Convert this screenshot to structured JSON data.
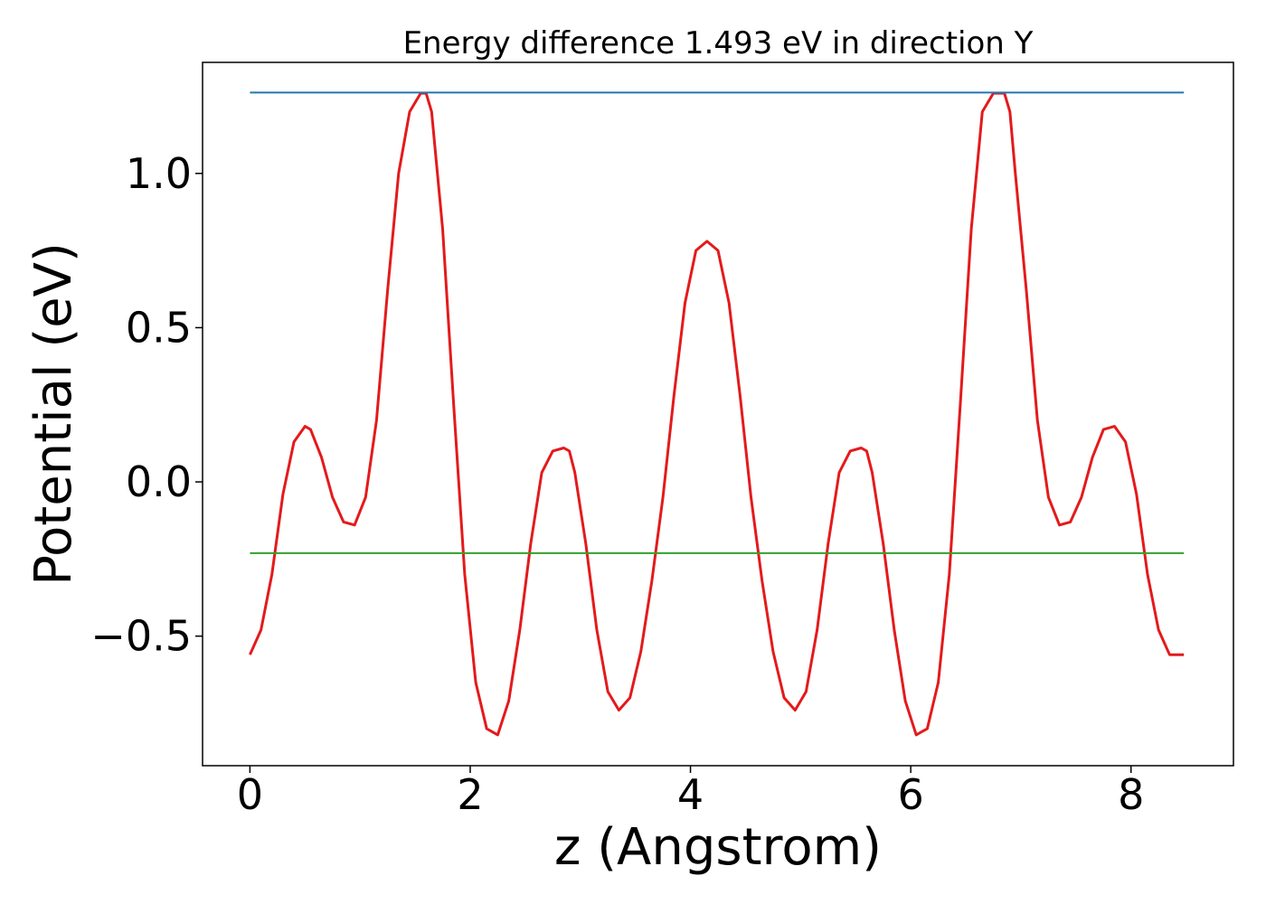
{
  "chart_data": {
    "type": "line",
    "title": "Energy difference 1.493 eV in direction Y",
    "xlabel": "z (Angstrom)",
    "ylabel": "Potential (eV)",
    "xlim": [
      -0.43,
      8.93
    ],
    "ylim": [
      -0.92,
      1.36
    ],
    "xticks": [
      0,
      2,
      4,
      6,
      8
    ],
    "xtick_labels": [
      "0",
      "2",
      "4",
      "6",
      "8"
    ],
    "yticks": [
      -0.5,
      0.0,
      0.5,
      1.0
    ],
    "ytick_labels": [
      "−0.5",
      "0.0",
      "0.5",
      "1.0"
    ],
    "grid": false,
    "series": [
      {
        "color": "#e31a1c",
        "x": [
          0.0,
          0.1,
          0.2,
          0.3,
          0.4,
          0.5,
          0.55,
          0.65,
          0.75,
          0.85,
          0.95,
          1.05,
          1.15,
          1.25,
          1.35,
          1.45,
          1.55,
          1.6,
          1.65,
          1.75,
          1.85,
          1.95,
          2.05,
          2.15,
          2.25,
          2.35,
          2.45,
          2.55,
          2.65,
          2.75,
          2.85,
          2.9,
          2.95,
          3.05,
          3.15,
          3.25,
          3.35,
          3.45,
          3.55,
          3.65,
          3.75,
          3.85,
          3.95,
          4.05,
          4.15,
          4.25,
          4.35,
          4.45,
          4.55,
          4.65,
          4.75,
          4.85,
          4.95,
          5.05,
          5.15,
          5.25,
          5.35,
          5.45,
          5.55,
          5.6,
          5.65,
          5.75,
          5.85,
          5.95,
          6.05,
          6.15,
          6.25,
          6.35,
          6.45,
          6.55,
          6.65,
          6.75,
          6.85,
          6.9,
          6.95,
          7.05,
          7.15,
          7.25,
          7.35,
          7.45,
          7.55,
          7.65,
          7.75,
          7.85,
          7.95,
          8.05,
          8.15,
          8.25,
          8.35,
          8.45,
          8.48
        ],
        "y": [
          -0.56,
          -0.48,
          -0.3,
          -0.04,
          0.13,
          0.18,
          0.17,
          0.08,
          -0.05,
          -0.13,
          -0.14,
          -0.05,
          0.2,
          0.62,
          1.0,
          1.2,
          1.26,
          1.26,
          1.2,
          0.82,
          0.25,
          -0.3,
          -0.65,
          -0.8,
          -0.82,
          -0.71,
          -0.48,
          -0.2,
          0.03,
          0.1,
          0.11,
          0.1,
          0.03,
          -0.2,
          -0.48,
          -0.68,
          -0.74,
          -0.7,
          -0.55,
          -0.32,
          -0.05,
          0.28,
          0.58,
          0.75,
          0.78,
          0.75,
          0.58,
          0.28,
          -0.05,
          -0.32,
          -0.55,
          -0.7,
          -0.74,
          -0.68,
          -0.48,
          -0.2,
          0.03,
          0.1,
          0.11,
          0.1,
          0.03,
          -0.2,
          -0.48,
          -0.71,
          -0.82,
          -0.8,
          -0.65,
          -0.3,
          0.25,
          0.82,
          1.2,
          1.26,
          1.26,
          1.2,
          1.0,
          0.62,
          0.2,
          -0.05,
          -0.14,
          -0.13,
          -0.05,
          0.08,
          0.17,
          0.18,
          0.13,
          -0.04,
          -0.3,
          -0.48,
          -0.56,
          -0.56,
          -0.56
        ]
      },
      {
        "color": "#1f77b4",
        "x": [
          0.0,
          8.48
        ],
        "y": [
          1.262,
          1.262
        ]
      },
      {
        "color": "#33a02c",
        "x": [
          0.0,
          8.48
        ],
        "y": [
          -0.231,
          -0.231
        ]
      }
    ]
  }
}
